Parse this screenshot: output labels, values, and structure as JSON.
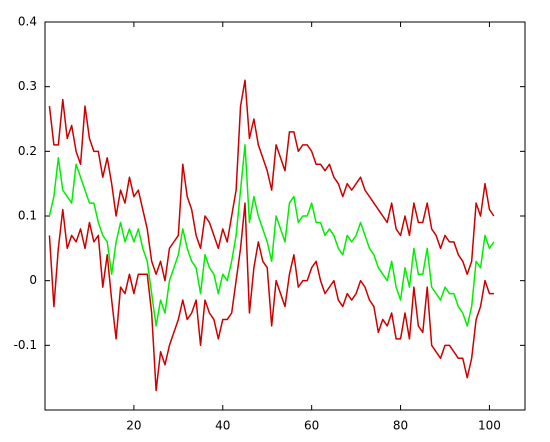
{
  "chart_data": {
    "type": "line",
    "x": [
      1,
      2,
      3,
      4,
      5,
      6,
      7,
      8,
      9,
      10,
      11,
      12,
      13,
      14,
      15,
      16,
      17,
      18,
      19,
      20,
      21,
      22,
      23,
      24,
      25,
      26,
      27,
      28,
      29,
      30,
      31,
      32,
      33,
      34,
      35,
      36,
      37,
      38,
      39,
      40,
      41,
      42,
      43,
      44,
      45,
      46,
      47,
      48,
      49,
      50,
      51,
      52,
      53,
      54,
      55,
      56,
      57,
      58,
      59,
      60,
      61,
      62,
      63,
      64,
      65,
      66,
      67,
      68,
      69,
      70,
      71,
      72,
      73,
      74,
      75,
      76,
      77,
      78,
      79,
      80,
      81,
      82,
      83,
      84,
      85,
      86,
      87,
      88,
      89,
      90,
      91,
      92,
      93,
      94,
      95,
      96,
      97,
      98,
      99,
      100,
      101
    ],
    "series": [
      {
        "color": "#cc0000",
        "values": [
          0.27,
          0.21,
          0.21,
          0.28,
          0.22,
          0.24,
          0.2,
          0.18,
          0.27,
          0.22,
          0.2,
          0.2,
          0.16,
          0.19,
          0.15,
          0.1,
          0.14,
          0.12,
          0.16,
          0.13,
          0.14,
          0.11,
          0.08,
          0.03,
          0.01,
          0.03,
          0.0,
          0.05,
          0.06,
          0.07,
          0.18,
          0.13,
          0.11,
          0.07,
          0.05,
          0.1,
          0.09,
          0.07,
          0.05,
          0.08,
          0.06,
          0.1,
          0.14,
          0.27,
          0.31,
          0.22,
          0.25,
          0.21,
          0.19,
          0.17,
          0.14,
          0.21,
          0.19,
          0.17,
          0.23,
          0.23,
          0.2,
          0.21,
          0.21,
          0.2,
          0.18,
          0.18,
          0.17,
          0.18,
          0.16,
          0.15,
          0.13,
          0.15,
          0.14,
          0.15,
          0.16,
          0.14,
          0.13,
          0.12,
          0.11,
          0.1,
          0.09,
          0.12,
          0.08,
          0.07,
          0.1,
          0.07,
          0.12,
          0.09,
          0.09,
          0.12,
          0.08,
          0.07,
          0.05,
          0.07,
          0.06,
          0.06,
          0.04,
          0.03,
          0.01,
          0.03,
          0.12,
          0.1,
          0.15,
          0.11,
          0.1
        ]
      },
      {
        "color": "#00ee00",
        "values": [
          0.1,
          0.13,
          0.19,
          0.14,
          0.13,
          0.12,
          0.18,
          0.16,
          0.14,
          0.12,
          0.12,
          0.09,
          0.07,
          0.06,
          0.01,
          0.06,
          0.09,
          0.06,
          0.08,
          0.06,
          0.08,
          0.05,
          0.03,
          -0.02,
          -0.07,
          -0.03,
          -0.05,
          0.0,
          0.02,
          0.04,
          0.08,
          0.05,
          0.03,
          0.02,
          -0.02,
          0.04,
          0.02,
          0.01,
          -0.02,
          0.01,
          0.0,
          0.03,
          0.07,
          0.14,
          0.21,
          0.09,
          0.13,
          0.1,
          0.08,
          0.06,
          0.03,
          0.1,
          0.08,
          0.06,
          0.12,
          0.13,
          0.09,
          0.1,
          0.1,
          0.12,
          0.09,
          0.09,
          0.07,
          0.08,
          0.07,
          0.05,
          0.04,
          0.07,
          0.06,
          0.07,
          0.09,
          0.07,
          0.05,
          0.04,
          0.02,
          0.01,
          0.0,
          0.03,
          -0.01,
          -0.03,
          0.02,
          -0.01,
          0.05,
          0.01,
          0.01,
          0.05,
          -0.01,
          -0.02,
          -0.03,
          -0.01,
          -0.02,
          -0.02,
          -0.04,
          -0.05,
          -0.07,
          -0.04,
          0.03,
          0.02,
          0.07,
          0.05,
          0.06
        ]
      },
      {
        "color": "#cc0000",
        "values": [
          0.07,
          -0.04,
          0.05,
          0.11,
          0.05,
          0.07,
          0.06,
          0.08,
          0.05,
          0.09,
          0.06,
          0.07,
          -0.01,
          0.04,
          -0.03,
          -0.09,
          -0.01,
          -0.02,
          0.01,
          -0.02,
          0.01,
          0.01,
          0.01,
          -0.05,
          -0.17,
          -0.11,
          -0.13,
          -0.1,
          -0.08,
          -0.06,
          -0.03,
          -0.06,
          -0.05,
          -0.03,
          -0.1,
          -0.03,
          -0.05,
          -0.06,
          -0.09,
          -0.06,
          -0.06,
          -0.05,
          0.0,
          0.05,
          0.12,
          -0.05,
          0.02,
          0.06,
          0.03,
          0.02,
          -0.07,
          0.0,
          -0.02,
          -0.04,
          0.01,
          0.04,
          -0.01,
          0.0,
          0.0,
          0.02,
          0.03,
          0.0,
          -0.02,
          -0.01,
          0.0,
          -0.03,
          -0.04,
          -0.02,
          -0.03,
          -0.02,
          0.0,
          -0.01,
          -0.03,
          -0.04,
          -0.08,
          -0.06,
          -0.07,
          -0.05,
          -0.09,
          -0.09,
          -0.05,
          -0.09,
          -0.01,
          -0.07,
          -0.08,
          -0.01,
          -0.1,
          -0.11,
          -0.12,
          -0.1,
          -0.1,
          -0.11,
          -0.12,
          -0.12,
          -0.15,
          -0.12,
          -0.06,
          -0.04,
          0.0,
          -0.02,
          -0.02
        ]
      }
    ],
    "xlim": [
      0,
      108
    ],
    "xticks": [
      20,
      40,
      60,
      80,
      100
    ],
    "ylim": [
      -0.2,
      0.4
    ],
    "yticks": [
      -0.1,
      0,
      0.1,
      0.2,
      0.3,
      0.4
    ]
  }
}
